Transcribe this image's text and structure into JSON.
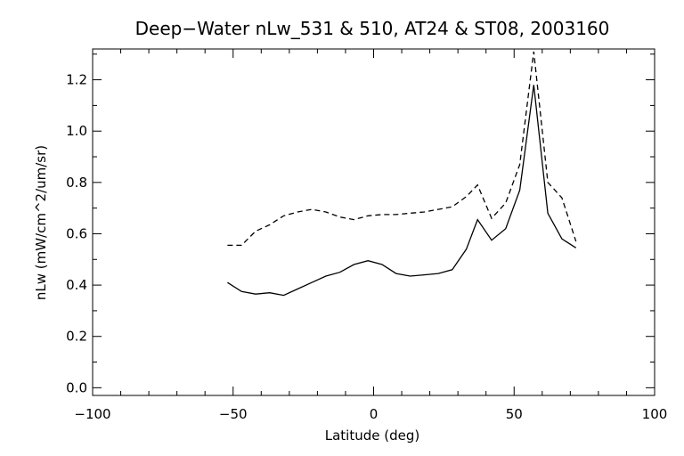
{
  "chart_data": {
    "type": "line",
    "title": "Deep−Water nLw_531 & 510, AT24 & ST08, 2003160",
    "xlabel": "Latitude (deg)",
    "ylabel": "nLw (mW/cm^2/um/sr)",
    "xlim": [
      -100,
      100
    ],
    "ylim": [
      -0.03,
      1.32
    ],
    "xticks": [
      -100,
      -50,
      0,
      50,
      100
    ],
    "xtick_labels": [
      "−100",
      "−50",
      "0",
      "50",
      "100"
    ],
    "yticks": [
      0.0,
      0.2,
      0.4,
      0.6,
      0.8,
      1.0,
      1.2
    ],
    "ytick_labels": [
      "0.0",
      "0.2",
      "0.4",
      "0.6",
      "0.8",
      "1.0",
      "1.2"
    ],
    "grid": false,
    "legend": "none",
    "series": [
      {
        "style": "solid",
        "color": "#000000",
        "x": [
          -52,
          -47,
          -42,
          -37,
          -32,
          -27,
          -22,
          -17,
          -12,
          -7,
          -2,
          3,
          8,
          13,
          18,
          23,
          28,
          33,
          37,
          42,
          47,
          52,
          57,
          62,
          67,
          72
        ],
        "y": [
          0.41,
          0.375,
          0.365,
          0.37,
          0.36,
          0.385,
          0.41,
          0.435,
          0.45,
          0.48,
          0.495,
          0.48,
          0.445,
          0.435,
          0.44,
          0.445,
          0.46,
          0.54,
          0.655,
          0.575,
          0.62,
          0.77,
          1.18,
          0.68,
          0.58,
          0.545
        ]
      },
      {
        "style": "dashed",
        "color": "#000000",
        "x": [
          -52,
          -47,
          -42,
          -37,
          -32,
          -27,
          -22,
          -17,
          -12,
          -7,
          -2,
          3,
          8,
          13,
          18,
          23,
          28,
          33,
          37,
          42,
          47,
          52,
          57,
          62,
          67,
          72
        ],
        "y": [
          0.555,
          0.555,
          0.61,
          0.635,
          0.67,
          0.685,
          0.695,
          0.685,
          0.665,
          0.655,
          0.67,
          0.675,
          0.675,
          0.68,
          0.685,
          0.695,
          0.705,
          0.745,
          0.79,
          0.66,
          0.72,
          0.87,
          1.31,
          0.8,
          0.74,
          0.57
        ]
      }
    ]
  }
}
